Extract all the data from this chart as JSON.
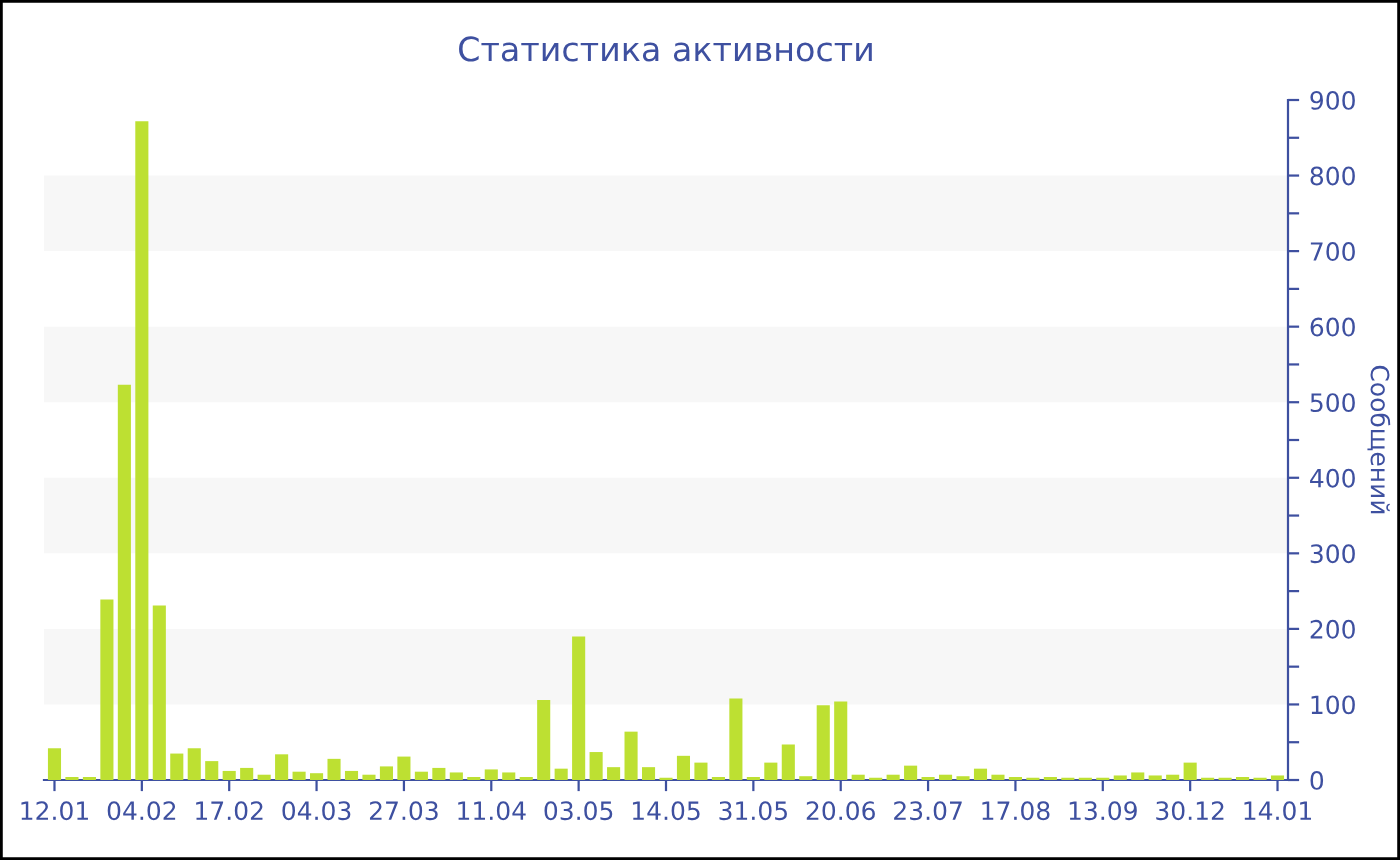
{
  "chart_data": {
    "type": "bar",
    "title": "Статистика активности",
    "ylabel": "Сообщений",
    "categories": [
      "12.01",
      null,
      null,
      null,
      null,
      "04.02",
      null,
      null,
      null,
      null,
      "17.02",
      null,
      null,
      null,
      null,
      "04.03",
      null,
      null,
      null,
      null,
      "27.03",
      null,
      null,
      null,
      null,
      "11.04",
      null,
      null,
      null,
      null,
      "03.05",
      null,
      null,
      null,
      null,
      "14.05",
      null,
      null,
      null,
      null,
      "31.05",
      null,
      null,
      null,
      null,
      "20.06",
      null,
      null,
      null,
      null,
      "23.07",
      null,
      null,
      null,
      null,
      "17.08",
      null,
      null,
      null,
      null,
      "13.09",
      null,
      null,
      null,
      null,
      "30.12",
      null,
      null,
      null,
      null,
      "14.01"
    ],
    "values": [
      42,
      4,
      4,
      239,
      523,
      872,
      231,
      35,
      42,
      25,
      12,
      16,
      7,
      34,
      11,
      9,
      28,
      12,
      7,
      18,
      31,
      11,
      16,
      10,
      4,
      14,
      10,
      4,
      106,
      15,
      190,
      37,
      17,
      64,
      17,
      3,
      32,
      23,
      4,
      108,
      4,
      23,
      47,
      5,
      99,
      104,
      7,
      3,
      7,
      19,
      4,
      7,
      5,
      15,
      7,
      4,
      3,
      4,
      3,
      3,
      3,
      6,
      10,
      6,
      7,
      23,
      3,
      3,
      4,
      3,
      6
    ],
    "color": "#bde032",
    "ylim": [
      0,
      900
    ],
    "yticks": [
      0,
      {
        "value": 50,
        "label": null
      },
      100,
      {
        "value": 150,
        "label": null
      },
      200,
      {
        "value": 250,
        "label": null
      },
      300,
      {
        "value": 350,
        "label": null
      },
      400,
      {
        "value": 450,
        "label": null
      },
      500,
      {
        "value": 550,
        "label": null
      },
      600,
      {
        "value": 650,
        "label": null
      },
      700,
      {
        "value": 750,
        "label": null
      },
      800,
      {
        "value": 850,
        "label": null
      },
      900
    ],
    "bands": [
      {
        "axis": "y",
        "from": 100,
        "to": 200,
        "color": "#f7f7f7"
      },
      {
        "axis": "y",
        "from": 300,
        "to": 400,
        "color": "#f7f7f7"
      },
      {
        "axis": "y",
        "from": 500,
        "to": 600,
        "color": "#f7f7f7"
      },
      {
        "axis": "y",
        "from": 700,
        "to": 800,
        "color": "#f7f7f7"
      }
    ]
  }
}
